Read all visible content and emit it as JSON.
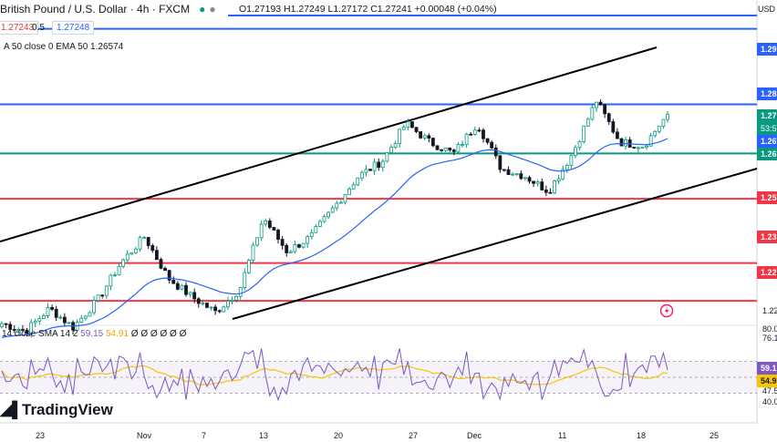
{
  "header": {
    "title": "British Pound / U.S. Dollar · 4h · FXCM",
    "ohlc": "O1.27193 H1.27249 L1.27172 C1.27241 +0.00048 (+0.04%)",
    "sell_price": "1.27243",
    "spread": "0.5",
    "buy_price": "1.27248",
    "ema_legend": "A 50 close 0 EMA 50 1.26574",
    "ema_value": "1.26574"
  },
  "rsi_legend": {
    "label": "14 close SMA 14 2",
    "rsi_value": "59.15",
    "sma_value": "54.91",
    "zeros": "Ø Ø Ø Ø Ø Ø"
  },
  "price_axis": {
    "currency": "USD",
    "labels": [
      "1.29",
      "1.28",
      "1.27",
      "1.26",
      "1.25",
      "1.23",
      "1.22",
      "1.22"
    ],
    "price_tag": "1.27",
    "countdown": "53:5",
    "ema_tag": "1.26",
    "green_tag": "1.26",
    "rsi_labels": [
      "80.0",
      "76.1",
      "59.1",
      "54.9",
      "47.5",
      "40.0"
    ]
  },
  "time_axis": [
    "23",
    "Nov",
    "7",
    "13",
    "20",
    "27",
    "Dec",
    "11",
    "18",
    "25"
  ],
  "logo": "TradingView",
  "colors": {
    "blue_level": "#2962ff",
    "green_level": "#089981",
    "red_level": "#f23645",
    "candle_up": "#089981",
    "candle_down": "#131722",
    "ema": "#2962ff",
    "rsi": "#7e57c2",
    "rsi_sma": "#f7c600",
    "channel": "#000000"
  },
  "chart_data": {
    "type": "candlestick",
    "symbol": "GBPUSD",
    "timeframe": "4h",
    "indicators": [
      "EMA 50",
      "RSI 14 with SMA 14"
    ],
    "horizontal_levels": [
      {
        "price": 1.295,
        "color": "blue"
      },
      {
        "price": 1.275,
        "color": "blue"
      },
      {
        "price": 1.262,
        "color": "green"
      },
      {
        "price": 1.25,
        "color": "red"
      },
      {
        "price": 1.233,
        "color": "red"
      },
      {
        "price": 1.223,
        "color": "red"
      }
    ],
    "close_path": [
      1.217,
      1.215,
      1.221,
      1.216,
      1.223,
      1.233,
      1.24,
      1.229,
      1.224,
      1.22,
      1.226,
      1.245,
      1.236,
      1.24,
      1.248,
      1.256,
      1.26,
      1.27,
      1.265,
      1.262,
      1.27,
      1.258,
      1.256,
      1.252,
      1.262,
      1.276,
      1.265,
      1.264,
      1.2724
    ],
    "rsi_range": [
      0,
      100
    ],
    "rsi_guides": [
      70,
      50,
      30
    ]
  }
}
